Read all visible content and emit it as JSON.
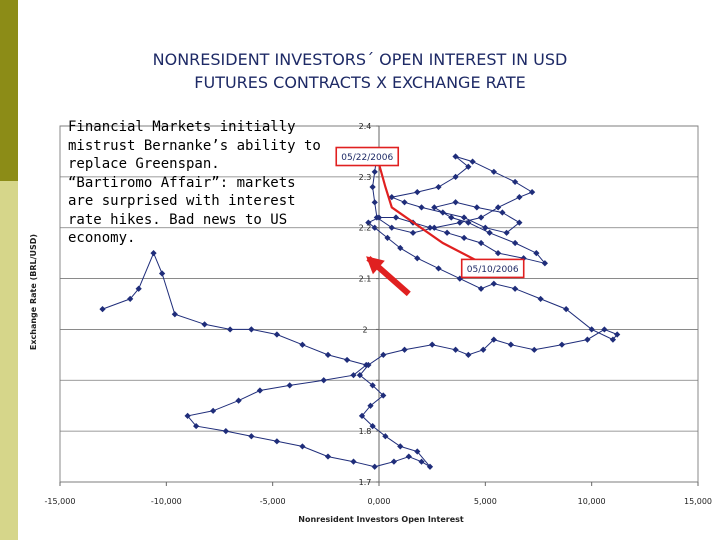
{
  "slide": {
    "title_line1": "NONRESIDENT  INVESTORS´  OPEN  INTEREST  IN  USD",
    "title_line2": "FUTURES  CONTRACTS  X EXCHANGE  RATE",
    "callout_lines": [
      "Financial Markets initially",
      "mistrust Bernanke’s ability to",
      "replace Greenspan.",
      "“Bartiromo Affair”: markets",
      "are surprised with interest",
      "rate hikes. Bad news to US",
      "economy."
    ],
    "colors": {
      "sidebar_dark": "#8c8c17",
      "sidebar_light": "#d6d68a",
      "series": "#1f2d7a",
      "highlight": "#e02020",
      "title": "#1e2a66"
    }
  },
  "chart_data": {
    "type": "scatter",
    "xlabel": "Nonresident Investors   Open Interest",
    "ylabel": "Exchange Rate (BRL/USD)",
    "xlim": [
      -15000,
      15000
    ],
    "ylim": [
      1.7,
      2.4
    ],
    "x_ticks": [
      -15000,
      -10000,
      -5000,
      0,
      5000,
      10000,
      15000
    ],
    "x_tick_labels": [
      "-15,000",
      "-10,000",
      "-5,000",
      "0,000",
      "5,000",
      "10,000",
      "15,000"
    ],
    "y_ticks": [
      1.7,
      1.8,
      1.9,
      2.0,
      2.1,
      2.2,
      2.3,
      2.4
    ],
    "y_tick_labels": [
      "1.7",
      "1.8",
      "",
      "2",
      "2.1",
      "2.2",
      "2.3",
      "2.4"
    ],
    "grid": "horizontal",
    "connected": true,
    "series": [
      {
        "points": [
          [
            -13000,
            2.04
          ],
          [
            -11700,
            2.06
          ],
          [
            -11300,
            2.08
          ],
          [
            -10600,
            2.15
          ],
          [
            -10200,
            2.11
          ],
          [
            -9600,
            2.03
          ],
          [
            -8200,
            2.01
          ],
          [
            -7000,
            2.0
          ],
          [
            -6000,
            2.0
          ],
          [
            -4800,
            1.99
          ],
          [
            -3600,
            1.97
          ],
          [
            -2400,
            1.95
          ],
          [
            -1500,
            1.94
          ],
          [
            -600,
            1.93
          ],
          [
            -1200,
            1.91
          ],
          [
            -2600,
            1.9
          ],
          [
            -4200,
            1.89
          ],
          [
            -5600,
            1.88
          ],
          [
            -6600,
            1.86
          ],
          [
            -7800,
            1.84
          ],
          [
            -9000,
            1.83
          ],
          [
            -8600,
            1.81
          ],
          [
            -7200,
            1.8
          ],
          [
            -6000,
            1.79
          ],
          [
            -4800,
            1.78
          ],
          [
            -3600,
            1.77
          ],
          [
            -2400,
            1.75
          ],
          [
            -1200,
            1.74
          ],
          [
            -200,
            1.73
          ],
          [
            700,
            1.74
          ],
          [
            1400,
            1.75
          ],
          [
            2000,
            1.74
          ],
          [
            2400,
            1.73
          ],
          [
            1800,
            1.76
          ],
          [
            1000,
            1.77
          ],
          [
            300,
            1.79
          ],
          [
            -300,
            1.81
          ],
          [
            -800,
            1.83
          ],
          [
            -400,
            1.85
          ],
          [
            200,
            1.87
          ],
          [
            -300,
            1.89
          ],
          [
            -900,
            1.91
          ],
          [
            -500,
            1.93
          ],
          [
            200,
            1.95
          ],
          [
            1200,
            1.96
          ],
          [
            2500,
            1.97
          ],
          [
            3600,
            1.96
          ],
          [
            4200,
            1.95
          ],
          [
            4900,
            1.96
          ],
          [
            5400,
            1.98
          ],
          [
            6200,
            1.97
          ],
          [
            7300,
            1.96
          ],
          [
            8600,
            1.97
          ],
          [
            9800,
            1.98
          ],
          [
            10600,
            2.0
          ],
          [
            11200,
            1.99
          ],
          [
            11000,
            1.98
          ],
          [
            10000,
            2.0
          ],
          [
            8800,
            2.04
          ],
          [
            7600,
            2.06
          ],
          [
            6400,
            2.08
          ],
          [
            5400,
            2.09
          ],
          [
            4800,
            2.08
          ],
          [
            3800,
            2.1
          ],
          [
            2800,
            2.12
          ],
          [
            1800,
            2.14
          ],
          [
            1000,
            2.16
          ],
          [
            400,
            2.18
          ],
          [
            -200,
            2.2
          ],
          [
            -500,
            2.21
          ],
          [
            0,
            2.22
          ],
          [
            800,
            2.22
          ],
          [
            1600,
            2.21
          ],
          [
            2400,
            2.2
          ],
          [
            3200,
            2.19
          ],
          [
            4000,
            2.18
          ],
          [
            4800,
            2.17
          ],
          [
            5600,
            2.15
          ],
          [
            6800,
            2.14
          ],
          [
            7800,
            2.13
          ],
          [
            7400,
            2.15
          ],
          [
            6400,
            2.17
          ],
          [
            5200,
            2.19
          ],
          [
            4200,
            2.21
          ],
          [
            3400,
            2.22
          ],
          [
            2600,
            2.24
          ],
          [
            3600,
            2.25
          ],
          [
            4600,
            2.24
          ],
          [
            5800,
            2.23
          ],
          [
            6600,
            2.21
          ],
          [
            6000,
            2.19
          ],
          [
            5000,
            2.2
          ],
          [
            4000,
            2.22
          ],
          [
            3000,
            2.23
          ],
          [
            2000,
            2.24
          ],
          [
            1200,
            2.25
          ],
          [
            600,
            2.26
          ],
          [
            1800,
            2.27
          ],
          [
            2800,
            2.28
          ],
          [
            3600,
            2.3
          ],
          [
            4200,
            2.32
          ],
          [
            3600,
            2.34
          ],
          [
            4400,
            2.33
          ],
          [
            5400,
            2.31
          ],
          [
            6400,
            2.29
          ],
          [
            7200,
            2.27
          ],
          [
            6600,
            2.26
          ],
          [
            5600,
            2.24
          ],
          [
            4800,
            2.22
          ],
          [
            3800,
            2.21
          ],
          [
            2600,
            2.2
          ],
          [
            1600,
            2.19
          ],
          [
            600,
            2.2
          ],
          [
            -100,
            2.22
          ],
          [
            -200,
            2.25
          ],
          [
            -300,
            2.28
          ],
          [
            -200,
            2.31
          ],
          [
            -100,
            2.34
          ]
        ]
      }
    ],
    "highlight_path": [
      [
        -100,
        2.34
      ],
      [
        300,
        2.28
      ],
      [
        600,
        2.24
      ],
      [
        3000,
        2.17
      ],
      [
        5300,
        2.12
      ]
    ],
    "highlight_arrow": {
      "from": [
        1400,
        2.07
      ],
      "to": [
        -500,
        2.14
      ]
    },
    "annotations": [
      {
        "text": "05/22/2006",
        "x": -600,
        "y": 2.34
      },
      {
        "text": "05/10/2006",
        "x": 5300,
        "y": 2.12
      }
    ]
  }
}
